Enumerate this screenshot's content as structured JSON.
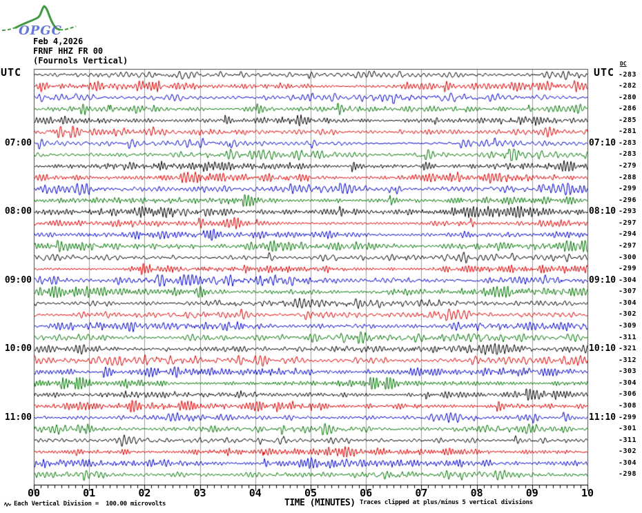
{
  "logo_text": "OPGC",
  "labels": {
    "utc_left": "UTC",
    "utc_right": "UTC",
    "dc_header": "DC"
  },
  "colors": {
    "black": "#000000",
    "red": "#dd0000",
    "blue": "#0000cc",
    "green": "#007400",
    "grid": "#9a9a9a",
    "frame": "#4a4a4a",
    "axis": "#000000",
    "background": "#ffffff"
  },
  "chart_data": {
    "type": "line",
    "subtype": "helicorder-seismogram",
    "date": "Feb 4,2026",
    "title": "FRNF HHZ FR 00",
    "subtitle": "(Fournols Vertical)",
    "xlabel": "TIME (MINUTES)",
    "x_axis_minutes": [
      "00",
      "01",
      "02",
      "03",
      "04",
      "05",
      "06",
      "07",
      "08",
      "09",
      "10"
    ],
    "minutes_per_row": 10,
    "minor_ticks_per_minute": 8,
    "scale_note": "Each Vertical Division =  100.00 microvolts",
    "clip_note": "Traces clipped at plus/minus 5 vertical divisions",
    "grid": true,
    "rows": [
      {
        "left_label": "",
        "right_label": "",
        "dc": -283,
        "color": "black"
      },
      {
        "left_label": "",
        "right_label": "",
        "dc": -282,
        "color": "red"
      },
      {
        "left_label": "",
        "right_label": "",
        "dc": -280,
        "color": "blue"
      },
      {
        "left_label": "",
        "right_label": "",
        "dc": -286,
        "color": "green"
      },
      {
        "left_label": "",
        "right_label": "",
        "dc": -285,
        "color": "black"
      },
      {
        "left_label": "",
        "right_label": "",
        "dc": -281,
        "color": "red"
      },
      {
        "left_label": "07:00",
        "right_label": "07:10",
        "dc": -283,
        "color": "blue"
      },
      {
        "left_label": "",
        "right_label": "",
        "dc": -283,
        "color": "green"
      },
      {
        "left_label": "",
        "right_label": "",
        "dc": -279,
        "color": "black"
      },
      {
        "left_label": "",
        "right_label": "",
        "dc": -288,
        "color": "red"
      },
      {
        "left_label": "",
        "right_label": "",
        "dc": -299,
        "color": "blue"
      },
      {
        "left_label": "",
        "right_label": "",
        "dc": -296,
        "color": "green"
      },
      {
        "left_label": "08:00",
        "right_label": "08:10",
        "dc": -293,
        "color": "black"
      },
      {
        "left_label": "",
        "right_label": "",
        "dc": -297,
        "color": "red"
      },
      {
        "left_label": "",
        "right_label": "",
        "dc": -294,
        "color": "blue"
      },
      {
        "left_label": "",
        "right_label": "",
        "dc": -297,
        "color": "green"
      },
      {
        "left_label": "",
        "right_label": "",
        "dc": -300,
        "color": "black"
      },
      {
        "left_label": "",
        "right_label": "",
        "dc": -299,
        "color": "red"
      },
      {
        "left_label": "09:00",
        "right_label": "09:10",
        "dc": -304,
        "color": "blue"
      },
      {
        "left_label": "",
        "right_label": "",
        "dc": -307,
        "color": "green"
      },
      {
        "left_label": "",
        "right_label": "",
        "dc": -304,
        "color": "black"
      },
      {
        "left_label": "",
        "right_label": "",
        "dc": -302,
        "color": "red"
      },
      {
        "left_label": "",
        "right_label": "",
        "dc": -309,
        "color": "blue"
      },
      {
        "left_label": "",
        "right_label": "",
        "dc": -311,
        "color": "green"
      },
      {
        "left_label": "10:00",
        "right_label": "10:10",
        "dc": -321,
        "color": "black"
      },
      {
        "left_label": "",
        "right_label": "",
        "dc": -312,
        "color": "red"
      },
      {
        "left_label": "",
        "right_label": "",
        "dc": -303,
        "color": "blue"
      },
      {
        "left_label": "",
        "right_label": "",
        "dc": -304,
        "color": "green"
      },
      {
        "left_label": "",
        "right_label": "",
        "dc": -306,
        "color": "black"
      },
      {
        "left_label": "",
        "right_label": "",
        "dc": -308,
        "color": "red"
      },
      {
        "left_label": "11:00",
        "right_label": "11:10",
        "dc": -299,
        "color": "blue"
      },
      {
        "left_label": "",
        "right_label": "",
        "dc": -301,
        "color": "green"
      },
      {
        "left_label": "",
        "right_label": "",
        "dc": -311,
        "color": "black"
      },
      {
        "left_label": "",
        "right_label": "",
        "dc": -302,
        "color": "red"
      },
      {
        "left_label": "",
        "right_label": "",
        "dc": -304,
        "color": "blue"
      },
      {
        "left_label": "",
        "right_label": "",
        "dc": -298,
        "color": "green"
      }
    ]
  }
}
